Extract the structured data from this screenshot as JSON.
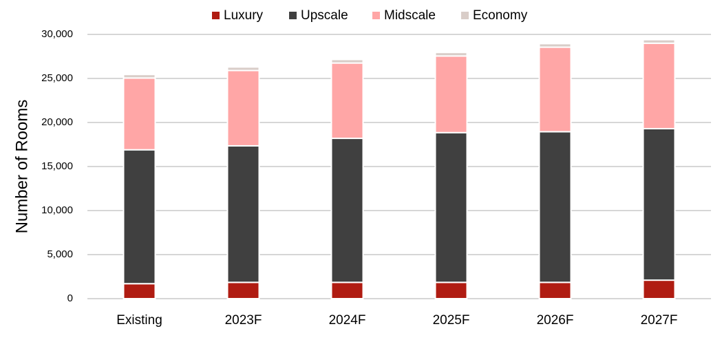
{
  "chart_data": {
    "type": "bar",
    "stacked": true,
    "ylabel": "Number of Rooms",
    "xlabel": "",
    "ylim": [
      0,
      30000
    ],
    "yticks": [
      0,
      5000,
      10000,
      15000,
      20000,
      25000,
      30000
    ],
    "ytick_labels": [
      "0",
      "5,000",
      "10,000",
      "15,000",
      "20,000",
      "25,000",
      "30,000"
    ],
    "grid": true,
    "legend_position": "top",
    "categories": [
      "Existing",
      "2023F",
      "2024F",
      "2025F",
      "2026F",
      "2027F"
    ],
    "series": [
      {
        "name": "Luxury",
        "color": "#b01c12",
        "values": [
          1700,
          1850,
          1850,
          1850,
          1850,
          2100
        ]
      },
      {
        "name": "Upscale",
        "color": "#404040",
        "values": [
          15200,
          15500,
          16350,
          17000,
          17100,
          17200
        ]
      },
      {
        "name": "Midscale",
        "color": "#ffa6a6",
        "values": [
          8150,
          8550,
          8550,
          8700,
          9600,
          9700
        ]
      },
      {
        "name": "Economy",
        "color": "#d9cdc8",
        "values": [
          400,
          400,
          400,
          400,
          400,
          400
        ]
      }
    ]
  }
}
